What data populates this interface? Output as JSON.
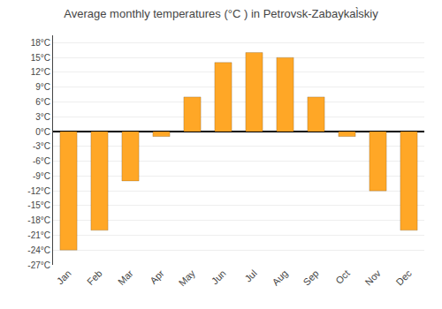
{
  "chart_data": {
    "type": "bar",
    "title": "Average monthly temperatures (°C ) in Petrovsk-Zabaykal̀skiy",
    "categories": [
      "Jan",
      "Feb",
      "Mar",
      "Apr",
      "May",
      "Jun",
      "Jul",
      "Aug",
      "Sep",
      "Oct",
      "Nov",
      "Dec"
    ],
    "values": [
      -24,
      -20,
      -10,
      -1,
      7,
      14,
      16,
      15,
      7,
      -1,
      -12,
      -20
    ],
    "color": "#FFA726",
    "ylim": [
      -27,
      19.5
    ],
    "yticks": [
      {
        "value": -27,
        "label": "-27°C"
      },
      {
        "value": -24,
        "label": "-24°C"
      },
      {
        "value": -21,
        "label": "-21°C"
      },
      {
        "value": -18,
        "label": "-18°C"
      },
      {
        "value": -15,
        "label": "-15°C"
      },
      {
        "value": -12,
        "label": "-12°C"
      },
      {
        "value": -9,
        "label": "-9°C"
      },
      {
        "value": -6,
        "label": "-6°C"
      },
      {
        "value": -3,
        "label": "-3°C"
      },
      {
        "value": 0,
        "label": "0°C"
      },
      {
        "value": 3,
        "label": "3°C"
      },
      {
        "value": 6,
        "label": "6°C"
      },
      {
        "value": 9,
        "label": "9°C"
      },
      {
        "value": 12,
        "label": "12°C"
      },
      {
        "value": 15,
        "label": "15°C"
      },
      {
        "value": 18,
        "label": "18°C"
      }
    ],
    "grid": true
  }
}
